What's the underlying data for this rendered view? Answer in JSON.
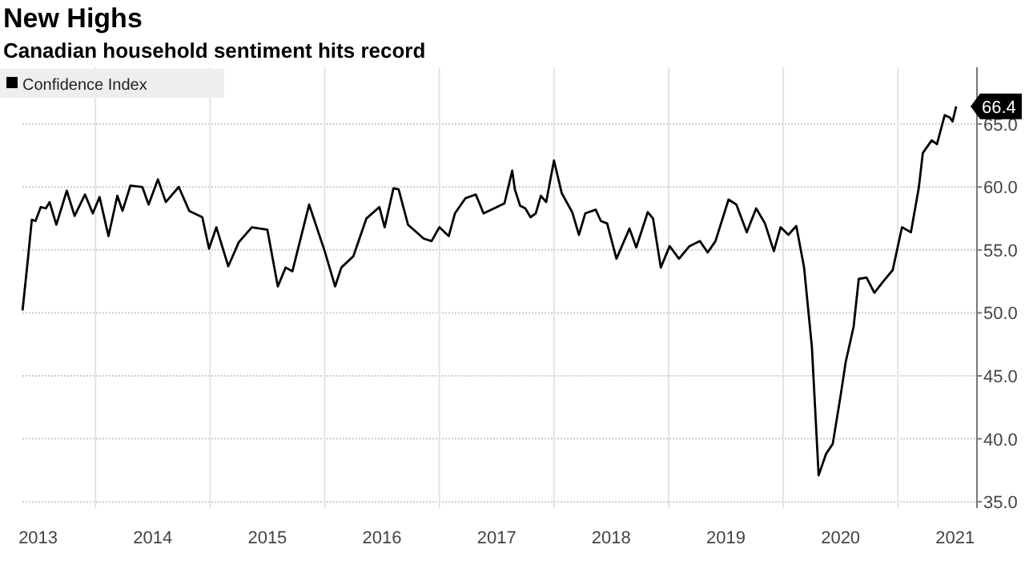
{
  "chart_data": {
    "type": "line",
    "title": "New Highs",
    "subtitle": "Canadian household sentiment hits record",
    "x": [
      2013.364,
      2013.409,
      2013.445,
      2013.477,
      2013.523,
      2013.568,
      2013.6,
      2013.659,
      2013.75,
      2013.818,
      2013.909,
      2013.977,
      2014.036,
      2014.114,
      2014.191,
      2014.236,
      2014.305,
      2014.409,
      2014.464,
      2014.545,
      2014.614,
      2014.727,
      2014.818,
      2014.932,
      2014.991,
      2015.055,
      2015.159,
      2015.25,
      2015.364,
      2015.5,
      2015.591,
      2015.659,
      2015.718,
      2015.864,
      2016.0,
      2016.091,
      2016.145,
      2016.25,
      2016.364,
      2016.477,
      2016.523,
      2016.6,
      2016.645,
      2016.727,
      2016.864,
      2016.932,
      2017.0,
      2017.082,
      2017.136,
      2017.227,
      2017.318,
      2017.386,
      2017.5,
      2017.568,
      2017.636,
      2017.659,
      2017.705,
      2017.75,
      2017.795,
      2017.841,
      2017.886,
      2017.932,
      2018.0,
      2018.068,
      2018.159,
      2018.218,
      2018.273,
      2018.364,
      2018.409,
      2018.464,
      2018.545,
      2018.659,
      2018.718,
      2018.818,
      2018.864,
      2018.932,
      2019.009,
      2019.091,
      2019.182,
      2019.273,
      2019.341,
      2019.409,
      2019.523,
      2019.591,
      2019.682,
      2019.764,
      2019.841,
      2019.918,
      2019.977,
      2020.045,
      2020.114,
      2020.182,
      2020.25,
      2020.309,
      2020.373,
      2020.432,
      2020.5,
      2020.545,
      2020.614,
      2020.659,
      2020.727,
      2020.795,
      2020.873,
      2020.955,
      2021.036,
      2021.114,
      2021.182,
      2021.218,
      2021.295,
      2021.341,
      2021.409,
      2021.455,
      2021.477,
      2021.509
    ],
    "series": [
      {
        "name": "Confidence Index",
        "color": "#000000",
        "values": [
          50.2,
          54.1,
          57.4,
          57.3,
          58.4,
          58.3,
          58.8,
          57.0,
          59.7,
          57.7,
          59.4,
          57.9,
          59.2,
          56.1,
          59.3,
          58.1,
          60.1,
          60.0,
          58.6,
          60.6,
          58.8,
          60.0,
          58.1,
          57.6,
          55.1,
          56.8,
          53.7,
          55.6,
          56.8,
          56.6,
          52.1,
          53.6,
          53.3,
          58.6,
          54.9,
          52.1,
          53.6,
          54.5,
          57.5,
          58.4,
          56.8,
          59.9,
          59.8,
          57.0,
          55.9,
          55.7,
          56.8,
          56.1,
          57.9,
          59.1,
          59.4,
          57.9,
          58.4,
          58.7,
          61.3,
          59.8,
          58.5,
          58.3,
          57.6,
          57.9,
          59.3,
          58.8,
          62.1,
          59.5,
          58.0,
          56.2,
          57.9,
          58.2,
          57.3,
          57.1,
          54.3,
          56.7,
          55.2,
          58.0,
          57.5,
          53.6,
          55.3,
          54.3,
          55.3,
          55.7,
          54.8,
          55.7,
          59.0,
          58.6,
          56.4,
          58.3,
          57.1,
          54.9,
          56.8,
          56.2,
          56.9,
          53.6,
          47.3,
          37.1,
          38.8,
          39.6,
          43.4,
          46.1,
          48.9,
          52.7,
          52.8,
          51.6,
          52.5,
          53.4,
          56.8,
          56.4,
          59.9,
          62.7,
          63.7,
          63.4,
          65.7,
          65.5,
          65.2,
          66.4
        ],
        "value_labels": [
          null,
          null,
          null,
          null,
          null,
          null,
          null,
          null,
          null,
          null,
          null,
          null,
          null,
          null,
          null,
          null,
          null,
          null,
          null,
          null,
          null,
          null,
          null,
          null,
          null,
          null,
          null,
          null,
          null,
          null,
          null,
          null,
          null,
          null,
          null,
          null,
          null,
          null,
          null,
          null,
          null,
          null,
          null,
          null,
          null,
          null,
          null,
          null,
          null,
          null,
          null,
          null,
          null,
          null,
          null,
          null,
          null,
          null,
          null,
          null,
          null,
          null,
          null,
          null,
          null,
          null,
          null,
          null,
          null,
          null,
          null,
          null,
          null,
          null,
          null,
          null,
          null,
          null,
          null,
          null,
          null,
          null,
          null,
          null,
          null,
          null,
          null,
          null,
          null,
          null,
          null,
          null,
          null,
          null,
          null,
          null,
          null,
          null,
          null,
          null,
          null,
          null,
          null,
          null,
          null,
          null,
          null,
          null,
          null,
          null,
          null,
          null,
          null,
          "66.4"
        ]
      }
    ],
    "xlim": [
      2013.363,
      2021.69
    ],
    "xticks": [
      {
        "value": 2013.5,
        "label": "2013"
      },
      {
        "value": 2014,
        "label": null
      },
      {
        "value": 2014.5,
        "label": "2014"
      },
      {
        "value": 2015,
        "label": null
      },
      {
        "value": 2015.5,
        "label": "2015"
      },
      {
        "value": 2016,
        "label": null
      },
      {
        "value": 2016.5,
        "label": "2016"
      },
      {
        "value": 2017,
        "label": null
      },
      {
        "value": 2017.5,
        "label": "2017"
      },
      {
        "value": 2018,
        "label": null
      },
      {
        "value": 2018.5,
        "label": "2018"
      },
      {
        "value": 2019,
        "label": null
      },
      {
        "value": 2019.5,
        "label": "2019"
      },
      {
        "value": 2020,
        "label": null
      },
      {
        "value": 2020.5,
        "label": "2020"
      },
      {
        "value": 2021,
        "label": null
      },
      {
        "value": 2021.5,
        "label": "2021"
      }
    ],
    "ylim": [
      34.5,
      69.5
    ],
    "yticks": [
      {
        "value": 35,
        "label": "35.0"
      },
      {
        "value": 40,
        "label": "40.0"
      },
      {
        "value": 45,
        "label": "45.0"
      },
      {
        "value": 50,
        "label": "50.0"
      },
      {
        "value": 55,
        "label": "55.0"
      },
      {
        "value": 60,
        "label": "60.0"
      },
      {
        "value": 65,
        "label": "65.0"
      }
    ],
    "grid": true,
    "legend": "top left",
    "marker": "none",
    "line_style": "solid"
  }
}
